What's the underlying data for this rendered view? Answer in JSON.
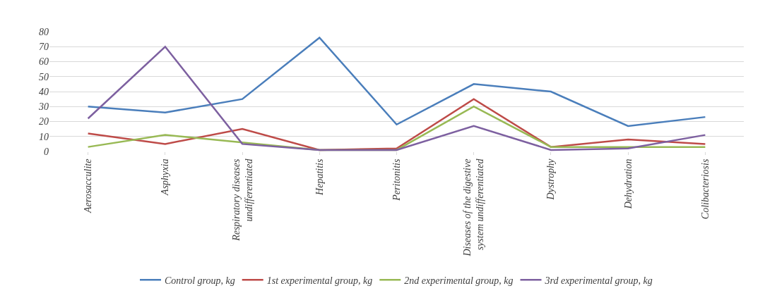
{
  "chart_data": {
    "type": "line",
    "categories": [
      "Aerosacculite",
      "Asphyxia",
      "Respiratory diseases undifferentiated",
      "Hepatitis",
      "Peritonitis",
      "Diseases of the digestive system undifferentiated",
      "Dystrophy",
      "Dehydration",
      "Colibacteriosis"
    ],
    "series": [
      {
        "name": "Control group, kg",
        "color": "#4a7ebb",
        "values": [
          30,
          26,
          35,
          76,
          18,
          45,
          40,
          17,
          23
        ]
      },
      {
        "name": "1st experimental group, kg",
        "color": "#be4b48",
        "values": [
          12,
          5,
          15,
          1,
          2,
          35,
          3,
          8,
          5
        ]
      },
      {
        "name": "2nd experimental group, kg",
        "color": "#98b954",
        "values": [
          3,
          11,
          6,
          1,
          1,
          30,
          3,
          3,
          3
        ]
      },
      {
        "name": "3rd experimental group, kg",
        "color": "#7d60a0",
        "values": [
          22,
          70,
          5,
          1,
          1,
          17,
          1,
          2,
          11
        ]
      }
    ],
    "ylim": [
      0,
      80
    ],
    "yticks": [
      0,
      10,
      20,
      30,
      40,
      50,
      60,
      70,
      80
    ],
    "grid": "y",
    "legend": "bottom",
    "marker": "none",
    "line_style": "solid"
  }
}
